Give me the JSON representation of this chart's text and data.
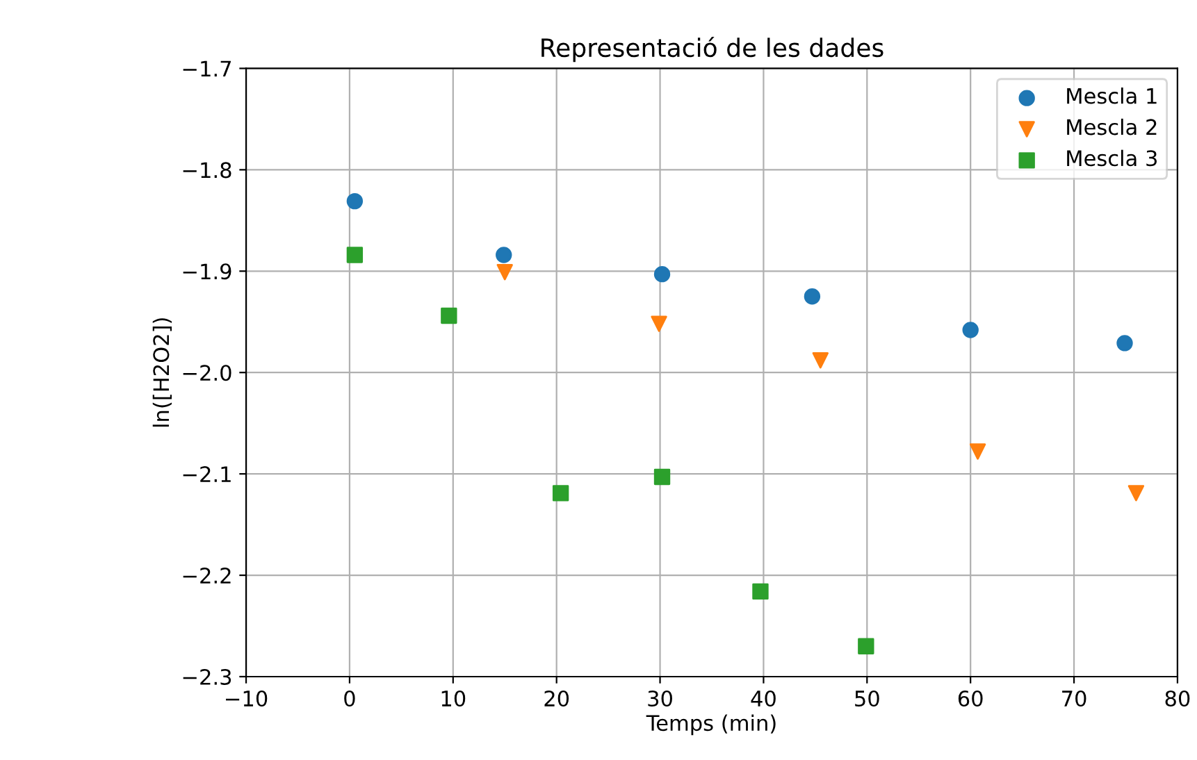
{
  "chart_data": {
    "type": "scatter",
    "title": "Representació de les dades",
    "xlabel": "Temps (min)",
    "ylabel": "ln([H2O2])",
    "xlim": [
      -10,
      80
    ],
    "xticks": [
      -10,
      0,
      10,
      20,
      30,
      40,
      50,
      60,
      70,
      80
    ],
    "ylim": [
      -2.3,
      -1.7
    ],
    "yticks": [
      -2.3,
      -2.2,
      -2.1,
      {
        "value": -2.0,
        "label": "−2.0"
      },
      -1.9,
      -1.8,
      -1.7
    ],
    "grid": true,
    "legend": "top right",
    "series": [
      {
        "name": "Mescla 1",
        "color": "#1f77b4",
        "marker": "circle",
        "x": [
          0.5,
          14.9,
          30.2,
          44.7,
          60.0,
          74.9
        ],
        "values": [
          -1.831,
          -1.884,
          -1.903,
          -1.925,
          -1.958,
          -1.971
        ]
      },
      {
        "name": "Mescla 2",
        "color": "#ff7f0e",
        "marker": "triangle",
        "x": [
          15.0,
          29.9,
          45.5,
          60.7,
          76.0
        ],
        "values": [
          -1.901,
          -1.952,
          -1.988,
          -2.078,
          -2.119
        ]
      },
      {
        "name": "Mescla 3",
        "color": "#2ca02c",
        "marker": "square",
        "x": [
          0.5,
          9.6,
          20.4,
          30.2,
          39.7,
          49.9
        ],
        "values": [
          -1.884,
          -1.944,
          -2.119,
          -2.103,
          -2.216,
          -2.27
        ]
      }
    ]
  }
}
